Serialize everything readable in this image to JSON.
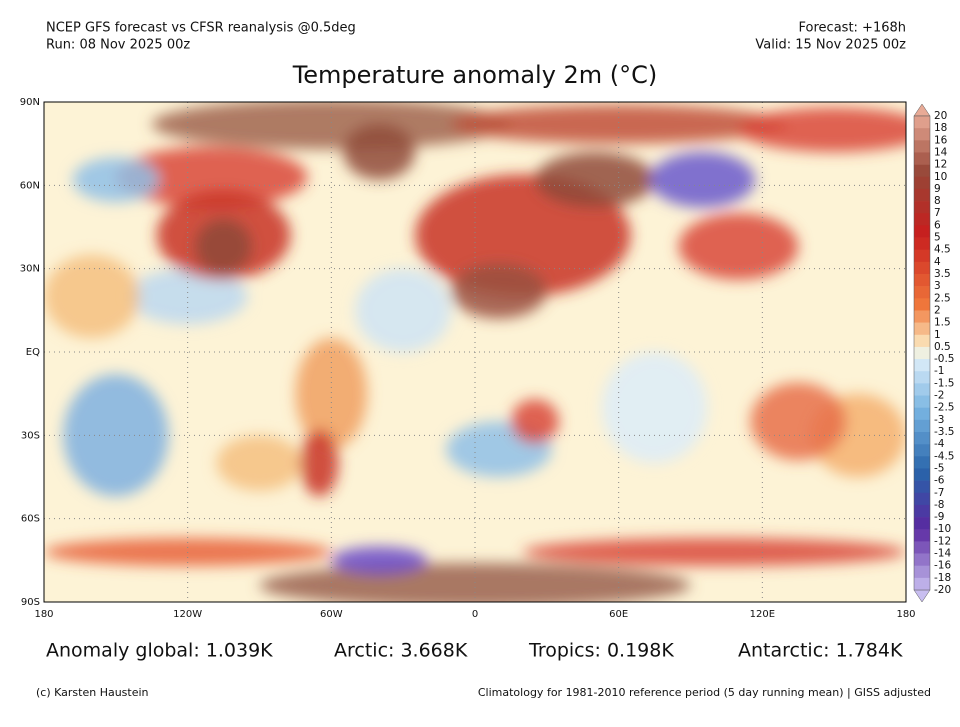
{
  "header": {
    "model": "NCEP GFS forecast vs CFSR reanalysis @0.5deg",
    "run": "Run: 08 Nov 2025 00z",
    "forecast": "Forecast: +168h",
    "valid": "Valid: 15 Nov 2025 00z",
    "title": "Temperature anomaly 2m (°C)"
  },
  "map": {
    "lat_labels": [
      "90N",
      "60N",
      "30N",
      "EQ",
      "30S",
      "60S",
      "90S"
    ],
    "lon_labels": [
      "180",
      "120W",
      "60W",
      "0",
      "60E",
      "120E",
      "180"
    ]
  },
  "colorbar": {
    "labels": [
      "20",
      "18",
      "16",
      "14",
      "12",
      "10",
      "9",
      "8",
      "7",
      "6",
      "5",
      "4.5",
      "4",
      "3.5",
      "3",
      "2.5",
      "2",
      "1.5",
      "1",
      "0.5",
      "-0.5",
      "-1",
      "-1.5",
      "-2",
      "-2.5",
      "-3",
      "-3.5",
      "-4",
      "-4.5",
      "-5",
      "-6",
      "-7",
      "-8",
      "-9",
      "-10",
      "-12",
      "-14",
      "-16",
      "-18",
      "-20"
    ]
  },
  "stats": {
    "global": "Anomaly global: 1.039K",
    "arctic": "Arctic: 3.668K",
    "tropics": "Tropics: 0.198K",
    "antarctic": "Antarctic: 1.784K"
  },
  "footer": {
    "credit": "(c) Karsten Haustein",
    "note": "Climatology for 1981-2010 reference period (5 day running mean) | GISS adjusted"
  }
}
